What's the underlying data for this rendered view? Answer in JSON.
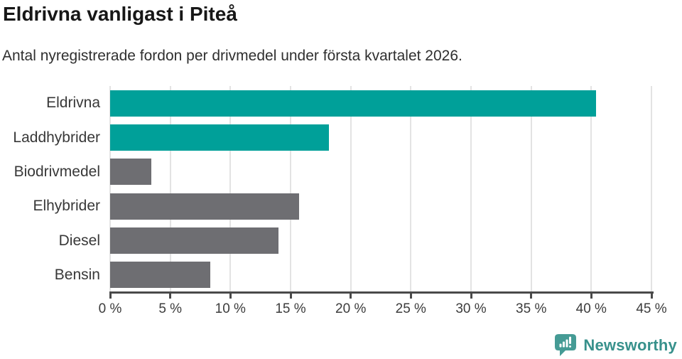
{
  "chart_data": {
    "type": "bar",
    "orientation": "horizontal",
    "title": "Eldrivna vanligast i Piteå",
    "subtitle": "Antal nyregistrerade fordon per drivmedel under första kvartalet 2026.",
    "categories": [
      "Eldrivna",
      "Laddhybrider",
      "Biodrivmedel",
      "Elhybrider",
      "Diesel",
      "Bensin"
    ],
    "values": [
      40.4,
      18.2,
      3.4,
      15.7,
      14.0,
      8.3
    ],
    "unit": "%",
    "xlabel": "",
    "ylabel": "",
    "xlim": [
      0,
      45
    ],
    "x_ticks": [
      0,
      5,
      10,
      15,
      20,
      25,
      30,
      35,
      40,
      45
    ],
    "x_tick_suffix": " %",
    "grid": true,
    "legend_position": "none",
    "bar_colors": [
      "#00a099",
      "#00a099",
      "#6e6e72",
      "#6e6e72",
      "#6e6e72",
      "#6e6e72"
    ],
    "highlight_color": "#00a099",
    "default_color": "#6e6e72"
  },
  "footer": {
    "brand": "Newsworthy",
    "logo_icon": "newsworthy-bar-chart-speech-bubble-icon",
    "brand_text_color": "#38918c",
    "logo_icon_color": "#459b95"
  }
}
